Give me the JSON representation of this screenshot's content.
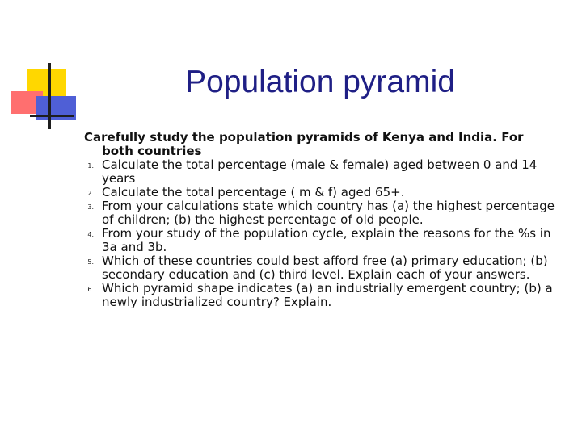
{
  "slide": {
    "title": "Population pyramid",
    "intro_line1": "Carefully study the population pyramids of Kenya and India. For",
    "intro_line2": "both countries",
    "items": [
      {
        "number": "1.",
        "text": "Calculate the total percentage (male &  female) aged between 0 and 14 years"
      },
      {
        "number": "2.",
        "text": "Calculate the total percentage ( m & f) aged 65+."
      },
      {
        "number": "3.",
        "text": "From your calculations state which country has (a) the highest percentage of children; (b) the highest percentage of old people."
      },
      {
        "number": "4.",
        "text": "From your study of the population cycle, explain the reasons for the %s in 3a and 3b."
      },
      {
        "number": "5.",
        "text": "Which of these countries could best afford free  (a) primary education; (b) secondary education and (c) third level. Explain each of your answers."
      },
      {
        "number": "6.",
        "text": "Which pyramid shape indicates (a) an industrially emergent country; (b) a newly industrialized country? Explain."
      }
    ]
  },
  "colors": {
    "title": "#1f1f85",
    "deco_yellow": "#ffd700",
    "deco_red": "#ff6f6f",
    "deco_blue": "#4f5fd6"
  }
}
